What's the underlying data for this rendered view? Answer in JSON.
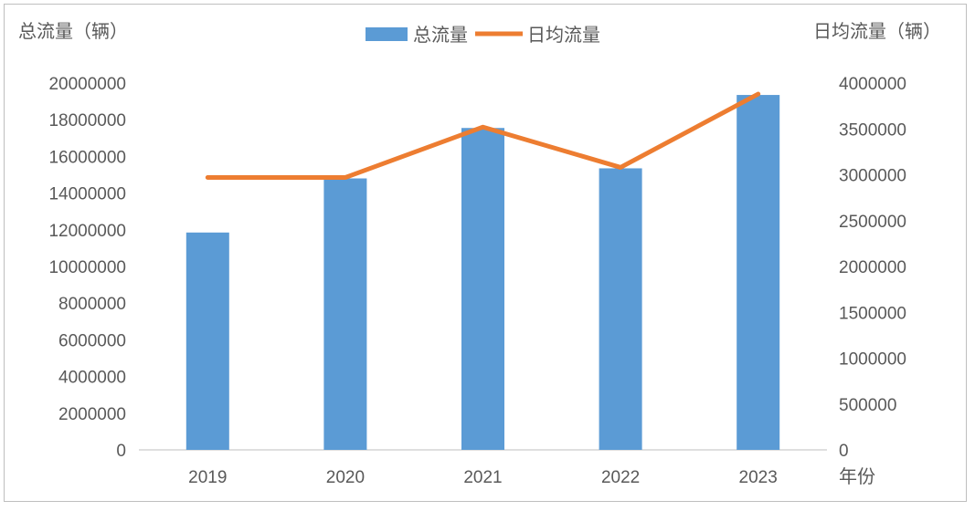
{
  "chart_data": {
    "type": "bar+line",
    "categories": [
      "2019",
      "2020",
      "2021",
      "2022",
      "2023"
    ],
    "series": [
      {
        "name": "总流量",
        "type": "bar",
        "axis": "left",
        "values": [
          11850000,
          14800000,
          17550000,
          15350000,
          19350000
        ]
      },
      {
        "name": "日均流量",
        "type": "line",
        "axis": "right",
        "values": [
          2970000,
          2970000,
          3520000,
          3080000,
          3880000
        ]
      }
    ],
    "y_left": {
      "label": "总流量（辆）",
      "min": 0,
      "max": 20000000,
      "step": 2000000,
      "ticks": [
        "0",
        "2000000",
        "4000000",
        "6000000",
        "8000000",
        "10000000",
        "12000000",
        "14000000",
        "16000000",
        "18000000",
        "20000000"
      ]
    },
    "y_right": {
      "label": "日均流量（辆）",
      "min": 0,
      "max": 4000000,
      "step": 500000,
      "ticks": [
        "0",
        "500000",
        "1000000",
        "1500000",
        "2000000",
        "2500000",
        "3000000",
        "3500000",
        "4000000"
      ]
    },
    "xlabel": "年份",
    "legend_position": "top-center",
    "grid": false,
    "colors": {
      "bar": "#5b9bd5",
      "line": "#ed7d31",
      "axis": "#bfbfbf",
      "text": "#595959"
    }
  }
}
